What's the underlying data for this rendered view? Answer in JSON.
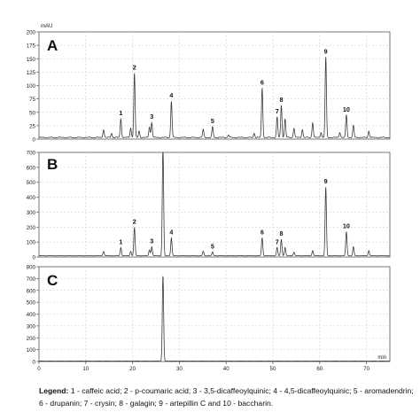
{
  "chart_data": [
    {
      "type": "line",
      "panel": "A",
      "ylabel": "mAU",
      "xlim": [
        0,
        75
      ],
      "ylim": [
        0,
        200
      ],
      "y_ticks": [
        0,
        25,
        50,
        75,
        100,
        125,
        150,
        175,
        200
      ],
      "y_tick_labels": [
        "0",
        "25",
        "50",
        "75",
        "100",
        "125",
        "150",
        "175",
        "200"
      ],
      "grid": true,
      "baseline": 3,
      "peaks": [
        {
          "x": 13.8,
          "y": 15
        },
        {
          "x": 15.5,
          "y": 8
        },
        {
          "x": 17.5,
          "y": 35,
          "label": "1"
        },
        {
          "x": 19.6,
          "y": 18
        },
        {
          "x": 20.4,
          "y": 120,
          "label": "2"
        },
        {
          "x": 21.4,
          "y": 12
        },
        {
          "x": 23.6,
          "y": 20
        },
        {
          "x": 24.1,
          "y": 28,
          "label": "3"
        },
        {
          "x": 28.3,
          "y": 68,
          "label": "4"
        },
        {
          "x": 35.1,
          "y": 15
        },
        {
          "x": 37.1,
          "y": 20,
          "label": "5"
        },
        {
          "x": 40.5,
          "y": 5
        },
        {
          "x": 46.0,
          "y": 8
        },
        {
          "x": 47.7,
          "y": 92,
          "label": "6"
        },
        {
          "x": 50.9,
          "y": 38,
          "label": "7"
        },
        {
          "x": 51.8,
          "y": 60,
          "label": "8"
        },
        {
          "x": 52.6,
          "y": 35
        },
        {
          "x": 54.5,
          "y": 18
        },
        {
          "x": 56.3,
          "y": 15
        },
        {
          "x": 58.5,
          "y": 28
        },
        {
          "x": 60.3,
          "y": 10
        },
        {
          "x": 61.3,
          "y": 150,
          "label": "9"
        },
        {
          "x": 64.3,
          "y": 10
        },
        {
          "x": 65.7,
          "y": 42,
          "label": "10"
        },
        {
          "x": 67.2,
          "y": 22
        },
        {
          "x": 70.5,
          "y": 12
        }
      ]
    },
    {
      "type": "line",
      "panel": "B",
      "xlim": [
        0,
        75
      ],
      "ylim": [
        0,
        700
      ],
      "y_ticks": [
        0,
        100,
        200,
        300,
        400,
        500,
        600,
        700
      ],
      "y_tick_labels": [
        "0",
        "100",
        "200",
        "300",
        "400",
        "500",
        "600",
        "700"
      ],
      "grid": true,
      "baseline": 8,
      "peaks": [
        {
          "x": 13.8,
          "y": 30
        },
        {
          "x": 17.5,
          "y": 55,
          "label": "1"
        },
        {
          "x": 19.6,
          "y": 30
        },
        {
          "x": 20.4,
          "y": 190,
          "label": "2"
        },
        {
          "x": 23.6,
          "y": 40
        },
        {
          "x": 24.1,
          "y": 60,
          "label": "3"
        },
        {
          "x": 26.5,
          "y": 730
        },
        {
          "x": 28.3,
          "y": 120,
          "label": "4"
        },
        {
          "x": 35.1,
          "y": 30
        },
        {
          "x": 37.1,
          "y": 25,
          "label": "5"
        },
        {
          "x": 47.7,
          "y": 120,
          "label": "6"
        },
        {
          "x": 50.9,
          "y": 55,
          "label": "7"
        },
        {
          "x": 51.8,
          "y": 110,
          "label": "8"
        },
        {
          "x": 52.6,
          "y": 55
        },
        {
          "x": 54.5,
          "y": 25
        },
        {
          "x": 58.5,
          "y": 35
        },
        {
          "x": 61.3,
          "y": 460,
          "label": "9"
        },
        {
          "x": 65.7,
          "y": 160,
          "label": "10"
        },
        {
          "x": 67.2,
          "y": 60
        },
        {
          "x": 70.5,
          "y": 35
        }
      ]
    },
    {
      "type": "line",
      "panel": "C",
      "xlabel": "min",
      "xlim": [
        0,
        75
      ],
      "ylim": [
        0,
        800
      ],
      "x_ticks": [
        0,
        10,
        20,
        30,
        40,
        50,
        60,
        70
      ],
      "x_tick_labels": [
        "0",
        "10",
        "20",
        "30",
        "40",
        "50",
        "60",
        "70"
      ],
      "y_ticks": [
        0,
        100,
        200,
        300,
        400,
        500,
        600,
        700,
        800
      ],
      "y_tick_labels": [
        "0",
        "100",
        "200",
        "300",
        "400",
        "500",
        "600",
        "700",
        "800"
      ],
      "grid": true,
      "baseline": 4,
      "peaks": [
        {
          "x": 26.5,
          "y": 720
        }
      ]
    }
  ],
  "legend": {
    "title": "Legend:",
    "text": "1 - caffeic acid; 2 - p-coumaric acid; 3 - 3,5-dicaffeoylquinic; 4 - 4,5-dicaffeoylquinic; 5 - aromadendrin; 6 - drupanin; 7 - crysin; 8 - galagin; 9 - artepillin C and 10 - baccharin."
  },
  "colors": {
    "trace": "#3a3a3a",
    "grid": "#c8c8c8",
    "axis": "#555555",
    "text": "#222222"
  }
}
